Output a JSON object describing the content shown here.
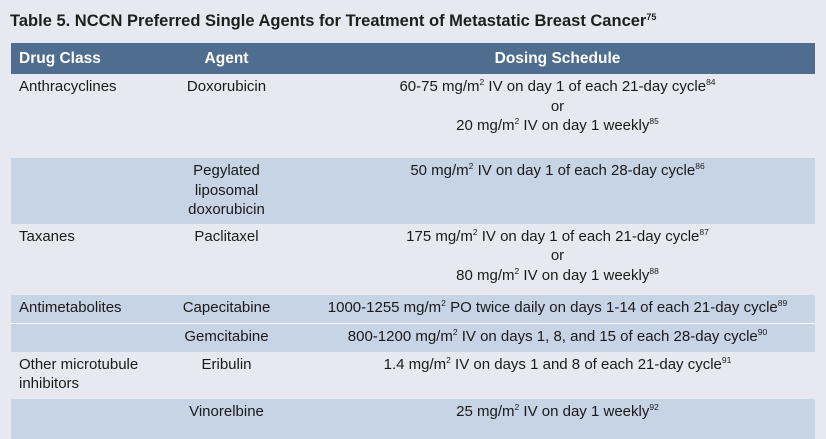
{
  "title": {
    "text": "Table 5. NCCN Preferred Single Agents for Treatment of Metastatic Breast Cancer",
    "ref": "75"
  },
  "headers": {
    "drug_class": "Drug Class",
    "agent": "Agent",
    "dosing": "Dosing Schedule"
  },
  "rows": [
    {
      "drug_class": "Anthracyclines",
      "agent": "Doxorubicin",
      "dose": [
        {
          "pre": "60-75 mg/m",
          "exp": "2",
          "post": " IV on day 1 of each 21-day cycle",
          "ref": "84"
        },
        {
          "pre": "or",
          "exp": "",
          "post": "",
          "ref": ""
        },
        {
          "pre": "20 mg/m",
          "exp": "2",
          "post": " IV on day 1 weekly",
          "ref": "85"
        }
      ]
    },
    {
      "drug_class": "",
      "agent": "Pegylated liposomal doxorubicin",
      "dose": [
        {
          "pre": "50 mg/m",
          "exp": "2",
          "post": " IV on day 1 of each 28-day cycle",
          "ref": "86"
        }
      ]
    },
    {
      "drug_class": "Taxanes",
      "agent": "Paclitaxel",
      "dose": [
        {
          "pre": "175 mg/m",
          "exp": "2",
          "post": " IV on day 1 of each 21-day cycle",
          "ref": "87"
        },
        {
          "pre": "or",
          "exp": "",
          "post": "",
          "ref": ""
        },
        {
          "pre": "80 mg/m",
          "exp": "2",
          "post": " IV on day 1 weekly",
          "ref": "88"
        }
      ]
    },
    {
      "drug_class": "Antimetabolites",
      "agent": "Capecitabine",
      "dose": [
        {
          "pre": "1000-1255 mg/m",
          "exp": "2",
          "post": " PO twice daily on days 1-14 of each 21-day cycle",
          "ref": "89"
        }
      ]
    },
    {
      "drug_class": "",
      "agent": "Gemcitabine",
      "dose": [
        {
          "pre": "800-1200 mg/m",
          "exp": "2",
          "post": " IV on days 1, 8, and 15 of each 28-day cycle",
          "ref": "90"
        }
      ]
    },
    {
      "drug_class": "Other microtubule inhibitors",
      "agent": "Eribulin",
      "dose": [
        {
          "pre": "1.4 mg/m",
          "exp": "2",
          "post": " IV on days 1 and 8 of each 21-day cycle",
          "ref": "91"
        }
      ]
    },
    {
      "drug_class": "",
      "agent": "Vinorelbine",
      "dose": [
        {
          "pre": "25 mg/m",
          "exp": "2",
          "post": " IV on day 1 weekly",
          "ref": "92"
        }
      ]
    }
  ],
  "colors": {
    "background": "#e6eaf0",
    "header": "#4f6d8e",
    "alt_row": "#c6d4e6"
  }
}
